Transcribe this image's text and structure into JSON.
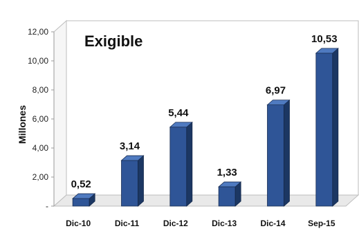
{
  "chart_data": {
    "type": "bar",
    "title": "Exigible",
    "xlabel": "",
    "ylabel": "Millones",
    "categories": [
      "Dic-10",
      "Dic-11",
      "Dic-12",
      "Dic-13",
      "Dic-14",
      "Sep-15"
    ],
    "values": [
      0.52,
      3.14,
      5.44,
      1.33,
      6.97,
      10.53
    ],
    "value_labels": [
      "0,52",
      "3,14",
      "5,44",
      "1,33",
      "6,97",
      "10,53"
    ],
    "ylim": [
      0,
      12
    ],
    "yticks": [
      0,
      2,
      4,
      6,
      8,
      10,
      12
    ],
    "ytick_labels": [
      "-",
      "2,00",
      "4,00",
      "6,00",
      "8,00",
      "10,00",
      "12,00"
    ],
    "grid": false,
    "colors": {
      "bar_front": "#2f5597",
      "bar_side": "#1c3763",
      "bar_top": "#4f7ac0",
      "wall": "#ffffff",
      "floor": "#e9e9e9",
      "background": "#ffffff"
    }
  }
}
